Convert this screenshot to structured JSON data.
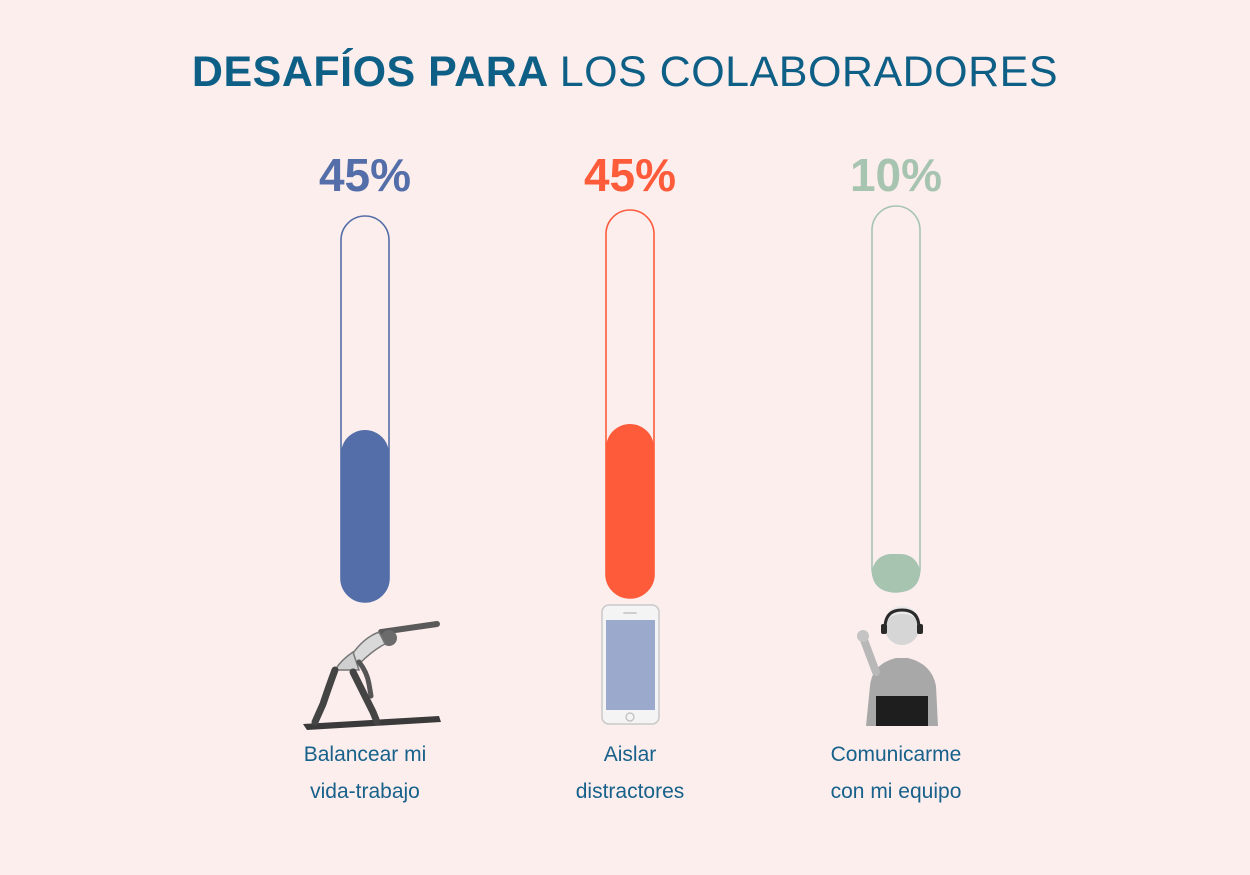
{
  "title": {
    "bold": "DESAFÍOS PARA",
    "regular": "LOS COLABORADORES"
  },
  "colors": {
    "title": "#0d5f86",
    "label": "#17618a",
    "background": "#fdeeee"
  },
  "chart_data": {
    "type": "bar",
    "title": "DESAFÍOS PARA LOS COLABORADORES",
    "categories": [
      "Balancear mi vida-trabajo",
      "Aislar distractores",
      "Comunicarme con mi equipo"
    ],
    "values": [
      45,
      45,
      10
    ],
    "value_labels": [
      "45%",
      "45%",
      "10%"
    ],
    "ylim": [
      0,
      100
    ],
    "unit": "%",
    "orientation": "vertical",
    "style": "thermometer",
    "grid": false,
    "legend": "none",
    "items": [
      {
        "percent": "45%",
        "label_line1": "Balancear mi",
        "label_line2": "vida-trabajo",
        "color": "#536ea8",
        "icon": "yoga-person-icon"
      },
      {
        "percent": "45%",
        "label_line1": "Aislar",
        "label_line2": "distractores",
        "color": "#fe5b3b",
        "icon": "smartphone-icon"
      },
      {
        "percent": "10%",
        "label_line1": "Comunicarme",
        "label_line2": "con mi equipo",
        "color": "#a6c4b0",
        "icon": "video-call-person-icon"
      }
    ]
  }
}
